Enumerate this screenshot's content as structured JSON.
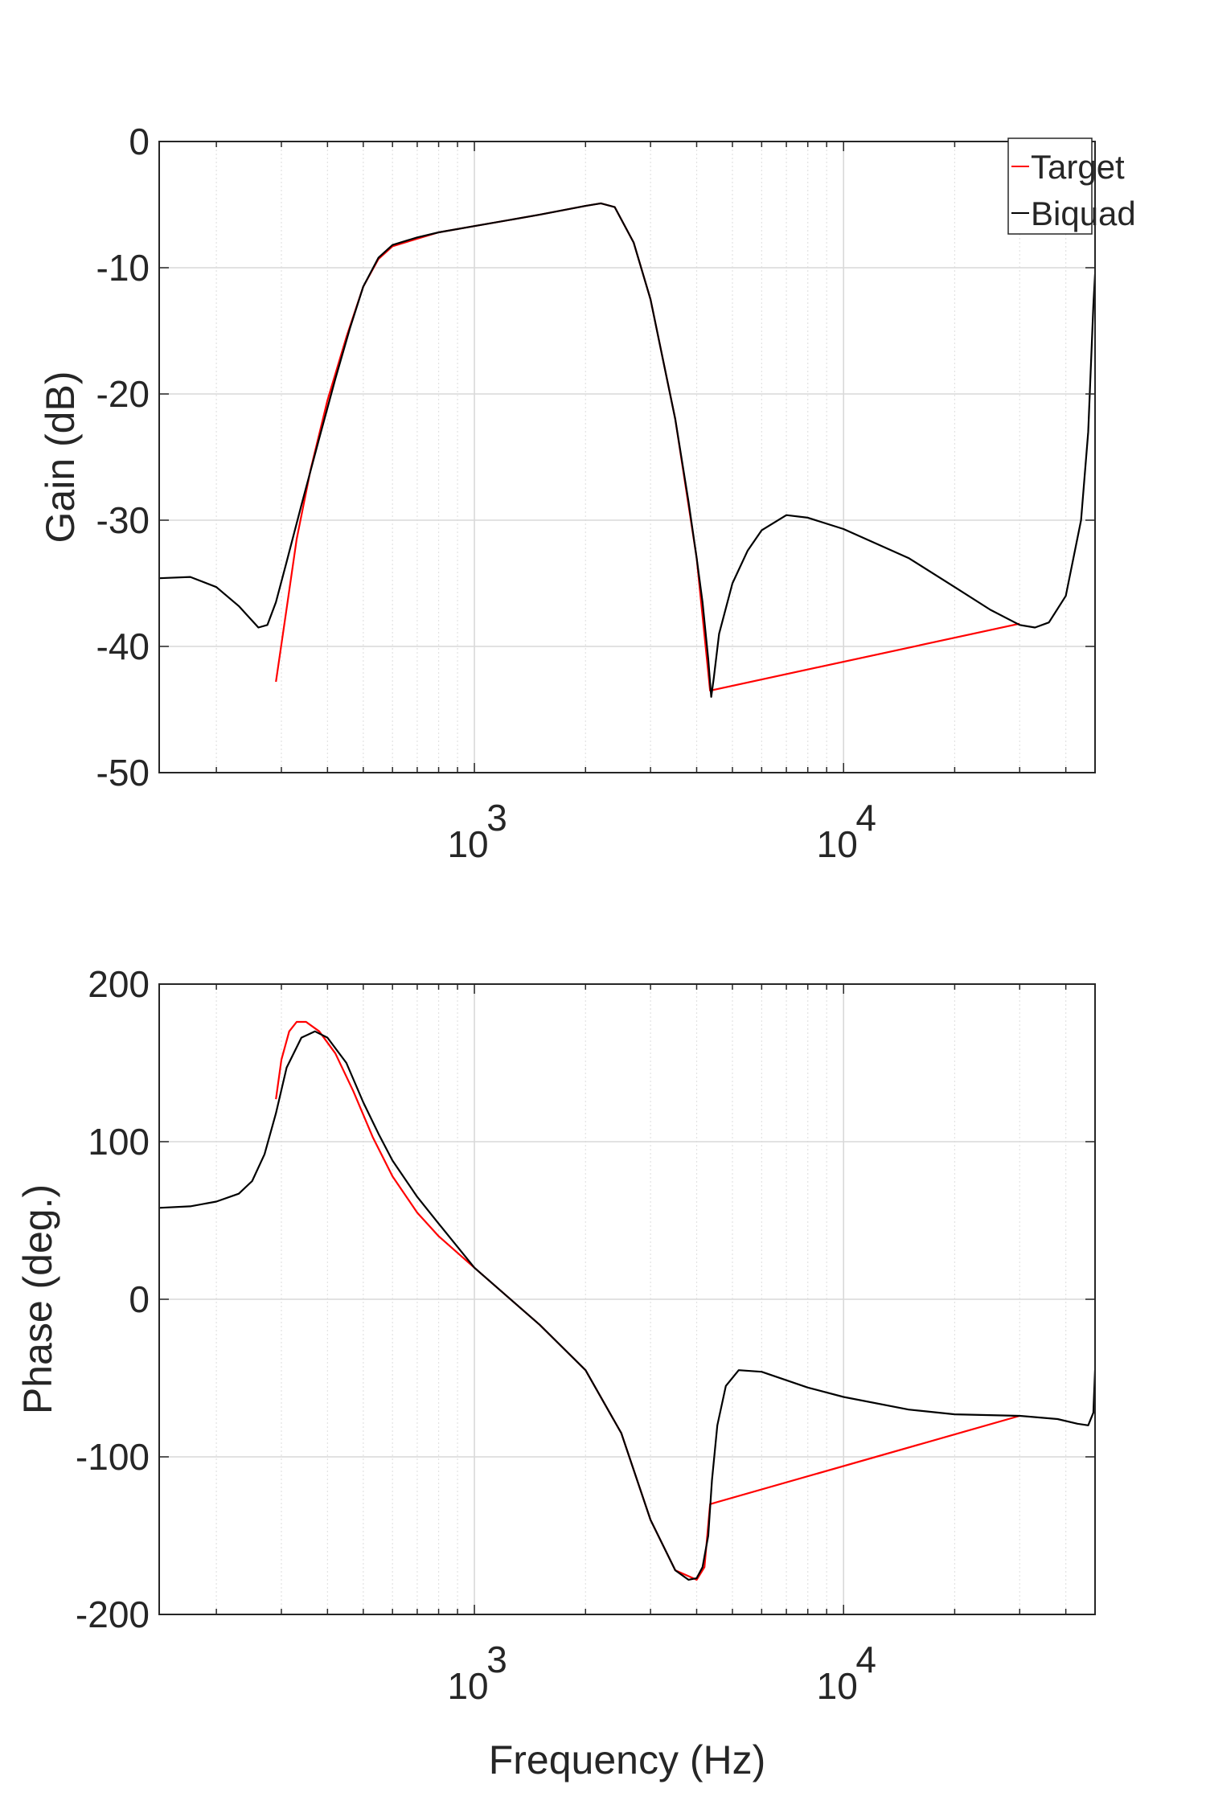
{
  "figure": {
    "xlabel": "Frequency (Hz)",
    "legend": {
      "entries": [
        {
          "label": "Target",
          "color": "#ff0000"
        },
        {
          "label": "Biquad",
          "color": "#000000"
        }
      ],
      "placement": "top-right"
    }
  },
  "chart_data": [
    {
      "type": "line",
      "title": "",
      "xlabel": "",
      "ylabel": "Gain (dB)",
      "xscale": "log",
      "xlim": [
        140,
        48000
      ],
      "ylim": [
        -50,
        0
      ],
      "x_ticks": [
        1000,
        10000
      ],
      "x_tick_labels": [
        {
          "base": "10",
          "exp": "3"
        },
        {
          "base": "10",
          "exp": "4"
        }
      ],
      "y_ticks": [
        0,
        -10,
        -20,
        -30,
        -40,
        -50
      ],
      "y_tick_labels": [
        "0",
        "-10",
        "-20",
        "-30",
        "-40",
        "-50"
      ],
      "grid": true,
      "legend_placement": "top-right",
      "series": [
        {
          "name": "Target",
          "color": "#ff0000",
          "points": [
            [
              290,
              -42.8
            ],
            [
              310,
              -37
            ],
            [
              330,
              -31.5
            ],
            [
              360,
              -26
            ],
            [
              400,
              -20.5
            ],
            [
              450,
              -15.5
            ],
            [
              500,
              -11.5
            ],
            [
              550,
              -9.3
            ],
            [
              600,
              -8.3
            ],
            [
              700,
              -7.7
            ],
            [
              800,
              -7.2
            ],
            [
              1000,
              -6.7
            ],
            [
              1500,
              -5.8
            ],
            [
              2000,
              -5.1
            ],
            [
              2200,
              -4.9
            ],
            [
              2400,
              -5.2
            ],
            [
              2700,
              -8
            ],
            [
              3000,
              -12.5
            ],
            [
              3500,
              -22
            ],
            [
              4000,
              -33
            ],
            [
              4350,
              -43.5
            ],
            [
              30000,
              -38.2
            ]
          ]
        },
        {
          "name": "Biquad",
          "color": "#000000",
          "points": [
            [
              140,
              -34.6
            ],
            [
              170,
              -34.5
            ],
            [
              200,
              -35.3
            ],
            [
              230,
              -36.8
            ],
            [
              260,
              -38.5
            ],
            [
              275,
              -38.3
            ],
            [
              290,
              -36.5
            ],
            [
              310,
              -33.3
            ],
            [
              340,
              -28.8
            ],
            [
              380,
              -23.5
            ],
            [
              420,
              -18.8
            ],
            [
              460,
              -14.8
            ],
            [
              500,
              -11.5
            ],
            [
              550,
              -9.2
            ],
            [
              600,
              -8.2
            ],
            [
              700,
              -7.6
            ],
            [
              800,
              -7.2
            ],
            [
              1000,
              -6.7
            ],
            [
              1500,
              -5.8
            ],
            [
              2000,
              -5.1
            ],
            [
              2200,
              -4.9
            ],
            [
              2400,
              -5.2
            ],
            [
              2700,
              -8
            ],
            [
              3000,
              -12.5
            ],
            [
              3500,
              -22
            ],
            [
              3800,
              -28.5
            ],
            [
              4000,
              -33
            ],
            [
              4150,
              -36.5
            ],
            [
              4300,
              -41
            ],
            [
              4380,
              -44
            ],
            [
              4450,
              -42.5
            ],
            [
              4600,
              -39
            ],
            [
              5000,
              -35
            ],
            [
              5500,
              -32.4
            ],
            [
              6000,
              -30.8
            ],
            [
              7000,
              -29.6
            ],
            [
              8000,
              -29.8
            ],
            [
              10000,
              -30.7
            ],
            [
              15000,
              -33
            ],
            [
              20000,
              -35.3
            ],
            [
              25000,
              -37.1
            ],
            [
              30000,
              -38.3
            ],
            [
              33000,
              -38.5
            ],
            [
              36000,
              -38.1
            ],
            [
              40000,
              -36
            ],
            [
              44000,
              -30
            ],
            [
              46000,
              -23
            ],
            [
              47500,
              -13
            ],
            [
              48000,
              -10.5
            ]
          ]
        }
      ]
    },
    {
      "type": "line",
      "title": "",
      "xlabel": "Frequency (Hz)",
      "ylabel": "Phase (deg.)",
      "xscale": "log",
      "xlim": [
        140,
        48000
      ],
      "ylim": [
        -200,
        200
      ],
      "x_ticks": [
        1000,
        10000
      ],
      "x_tick_labels": [
        {
          "base": "10",
          "exp": "3"
        },
        {
          "base": "10",
          "exp": "4"
        }
      ],
      "y_ticks": [
        200,
        100,
        0,
        -100,
        -200
      ],
      "y_tick_labels": [
        "200",
        "100",
        "0",
        "-100",
        "-200"
      ],
      "grid": true,
      "series": [
        {
          "name": "Target",
          "color": "#ff0000",
          "points": [
            [
              290,
              127
            ],
            [
              300,
              152
            ],
            [
              315,
              170
            ],
            [
              330,
              176
            ],
            [
              350,
              176
            ],
            [
              380,
              170
            ],
            [
              420,
              156
            ],
            [
              470,
              132
            ],
            [
              530,
              103
            ],
            [
              600,
              78
            ],
            [
              700,
              55
            ],
            [
              800,
              40
            ],
            [
              1000,
              20
            ],
            [
              1500,
              -16
            ],
            [
              2000,
              -45
            ],
            [
              2500,
              -85
            ],
            [
              3000,
              -140
            ],
            [
              3500,
              -172
            ],
            [
              4000,
              -178
            ],
            [
              4200,
              -170
            ],
            [
              4350,
              -130
            ],
            [
              30000,
              -74
            ]
          ]
        },
        {
          "name": "Biquad",
          "color": "#000000",
          "points": [
            [
              140,
              58
            ],
            [
              170,
              59
            ],
            [
              200,
              62
            ],
            [
              230,
              67
            ],
            [
              250,
              75
            ],
            [
              270,
              92
            ],
            [
              290,
              118
            ],
            [
              310,
              147
            ],
            [
              340,
              166
            ],
            [
              370,
              170
            ],
            [
              400,
              166
            ],
            [
              450,
              150
            ],
            [
              500,
              125
            ],
            [
              550,
              105
            ],
            [
              600,
              88
            ],
            [
              700,
              65
            ],
            [
              800,
              48
            ],
            [
              1000,
              20
            ],
            [
              1500,
              -16
            ],
            [
              2000,
              -45
            ],
            [
              2500,
              -85
            ],
            [
              3000,
              -140
            ],
            [
              3500,
              -172
            ],
            [
              3800,
              -178
            ],
            [
              4000,
              -177
            ],
            [
              4150,
              -170
            ],
            [
              4300,
              -150
            ],
            [
              4400,
              -115
            ],
            [
              4550,
              -80
            ],
            [
              4800,
              -55
            ],
            [
              5200,
              -45
            ],
            [
              6000,
              -46
            ],
            [
              8000,
              -56
            ],
            [
              10000,
              -62
            ],
            [
              15000,
              -70
            ],
            [
              20000,
              -73
            ],
            [
              30000,
              -74
            ],
            [
              38000,
              -76
            ],
            [
              43000,
              -79
            ],
            [
              46000,
              -80
            ],
            [
              47500,
              -72
            ],
            [
              48000,
              -45
            ]
          ]
        }
      ]
    }
  ]
}
